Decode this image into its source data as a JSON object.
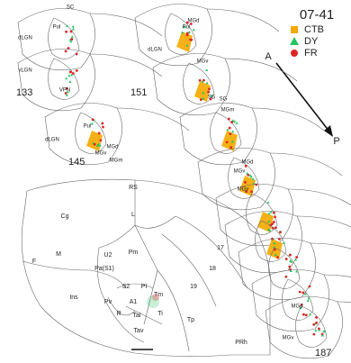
{
  "title": "07-41",
  "legend": [
    {
      "label": "CTB",
      "color": "#f5a800"
    },
    {
      "label": "DY",
      "color": "#22c55e"
    },
    {
      "label": "FR",
      "color": "#dc2626"
    }
  ],
  "direction": {
    "start": "A",
    "end": "P"
  },
  "sections": [
    "133",
    "151",
    "145",
    "187"
  ],
  "section_labels": [
    "SC",
    "dLGN",
    "Pul",
    "MGd",
    "MGv",
    "MGm",
    "SG",
    "VPN",
    "vLGN"
  ],
  "cortex_labels": [
    "RS",
    "Cg",
    "L",
    "17",
    "M",
    "F",
    "U2",
    "Pa(S1)",
    "Pm",
    "18",
    "S2",
    "PI",
    "19",
    "Ins",
    "Pv",
    "A1",
    "Tm",
    "R",
    "Tai",
    "Ti",
    "Tp",
    "Tav",
    "PRh"
  ]
}
